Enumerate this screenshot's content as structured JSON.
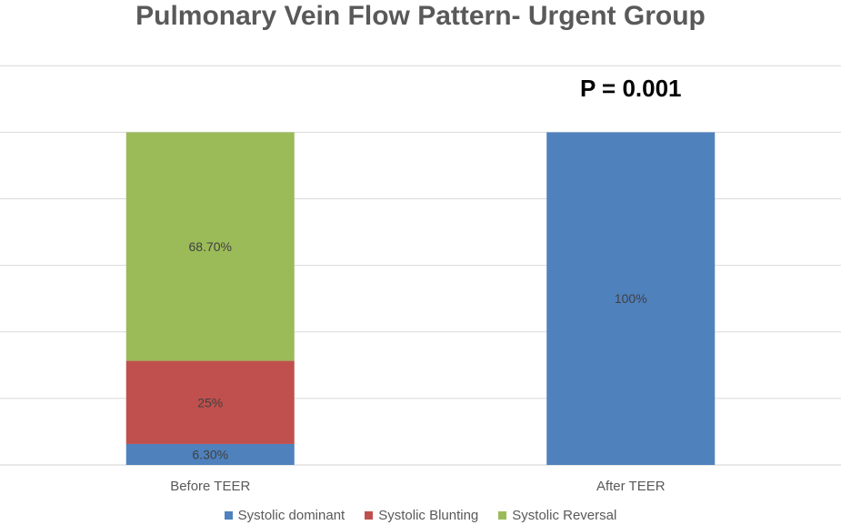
{
  "chart_data": {
    "type": "bar",
    "stacked": true,
    "title": "Pulmonary Vein Flow Pattern- Urgent Group",
    "annotation": "P = 0.001",
    "categories": [
      "Before TEER",
      "After TEER"
    ],
    "series": [
      {
        "name": "Systolic dominant",
        "color": "#4F81BD",
        "values": [
          6.3,
          100
        ],
        "labels": [
          "6.30%",
          "100%"
        ]
      },
      {
        "name": "Systolic Blunting",
        "color": "#C0504D",
        "values": [
          25,
          0
        ],
        "labels": [
          "25%",
          ""
        ]
      },
      {
        "name": "Systolic Reversal",
        "color": "#9BBB59",
        "values": [
          68.7,
          0
        ],
        "labels": [
          "68.70%",
          ""
        ]
      }
    ],
    "ylim": [
      0,
      125
    ],
    "grid": true,
    "legend_position": "bottom"
  }
}
